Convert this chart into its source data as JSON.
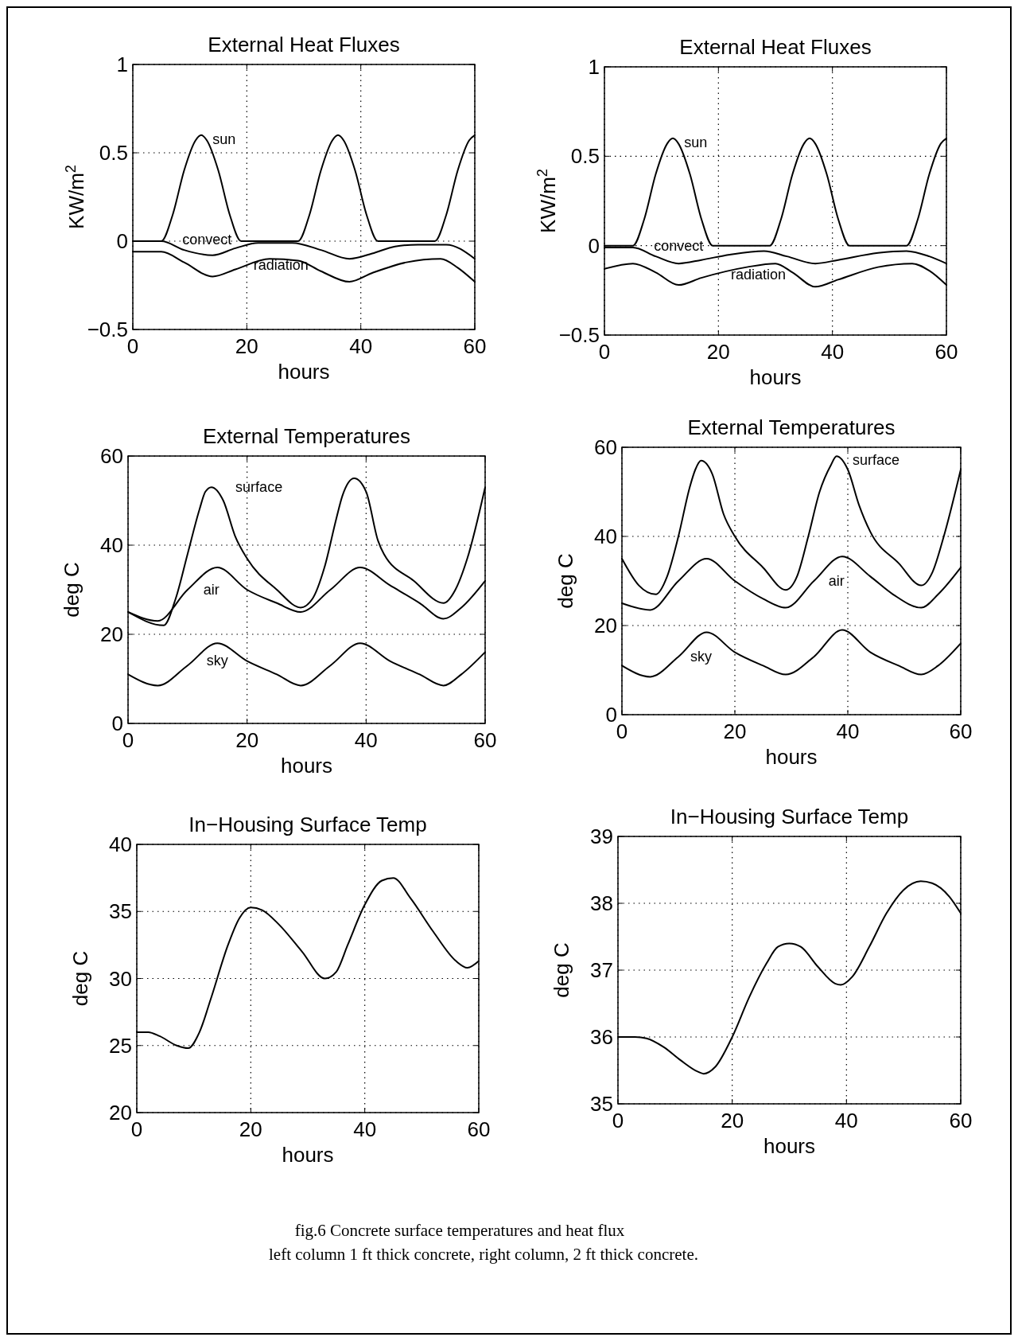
{
  "chart_data": [
    {
      "type": "line",
      "title": "External Heat Fluxes",
      "xlabel": "hours",
      "ylabel": "KW/m$^{2}$",
      "xlim": [
        0,
        60
      ],
      "ylim": [
        -0.5,
        1
      ],
      "xticks": [
        0,
        20,
        40,
        60
      ],
      "yticks": [
        {
          "value": -0.5,
          "label": "−0.5"
        },
        0,
        0.5,
        1
      ],
      "grid": true,
      "color": "#000000",
      "series": [
        {
          "name": "sun",
          "x": [
            0,
            5,
            7,
            9,
            11,
            12,
            13,
            15,
            17,
            19,
            29,
            31,
            33,
            35,
            36,
            37,
            39,
            41,
            43,
            53,
            55,
            57,
            59,
            60
          ],
          "values": [
            0,
            0,
            0.15,
            0.4,
            0.57,
            0.6,
            0.57,
            0.4,
            0.15,
            0,
            0,
            0.15,
            0.4,
            0.57,
            0.6,
            0.57,
            0.4,
            0.15,
            0,
            0,
            0.15,
            0.4,
            0.57,
            0.6
          ]
        },
        {
          "name": "convect",
          "x": [
            0,
            5,
            9,
            14,
            18,
            22,
            28,
            33,
            38,
            42,
            46,
            50,
            55,
            60
          ],
          "values": [
            0,
            0,
            -0.05,
            -0.08,
            -0.04,
            -0.01,
            -0.01,
            -0.05,
            -0.1,
            -0.07,
            -0.03,
            -0.02,
            -0.02,
            -0.1
          ]
        },
        {
          "name": "radiation",
          "x": [
            0,
            5,
            9,
            14,
            18,
            24,
            29,
            33,
            38,
            42,
            48,
            54,
            57,
            60
          ],
          "values": [
            -0.06,
            -0.06,
            -0.12,
            -0.2,
            -0.16,
            -0.1,
            -0.11,
            -0.17,
            -0.23,
            -0.18,
            -0.12,
            -0.1,
            -0.15,
            -0.23
          ]
        }
      ]
    },
    {
      "type": "line",
      "title": "External Heat Fluxes",
      "xlabel": "hours",
      "ylabel": "KW/m$^{2}$",
      "xlim": [
        0,
        60
      ],
      "ylim": [
        -0.5,
        1
      ],
      "xticks": [
        0,
        20,
        40,
        60
      ],
      "yticks": [
        {
          "value": -0.5,
          "label": "−0.5"
        },
        0,
        0.5,
        1
      ],
      "grid": true,
      "color": "#000000",
      "series": [
        {
          "name": "sun",
          "x": [
            0,
            5,
            7,
            9,
            11,
            12,
            13,
            15,
            17,
            19,
            29,
            31,
            33,
            35,
            36,
            37,
            39,
            41,
            43,
            53,
            55,
            57,
            59,
            60
          ],
          "values": [
            0,
            0,
            0.15,
            0.4,
            0.57,
            0.6,
            0.57,
            0.4,
            0.15,
            0,
            0,
            0.15,
            0.4,
            0.57,
            0.6,
            0.57,
            0.4,
            0.15,
            0,
            0,
            0.15,
            0.4,
            0.57,
            0.6
          ]
        },
        {
          "name": "convect",
          "x": [
            0,
            5,
            9,
            13,
            17,
            22,
            28,
            32,
            37,
            41,
            48,
            53,
            57,
            60
          ],
          "values": [
            -0.01,
            -0.01,
            -0.06,
            -0.1,
            -0.08,
            -0.05,
            -0.03,
            -0.06,
            -0.1,
            -0.08,
            -0.04,
            -0.03,
            -0.06,
            -0.1
          ]
        },
        {
          "name": "radiation",
          "x": [
            0,
            5,
            9,
            13,
            17,
            25,
            30,
            33,
            37,
            41,
            48,
            54,
            57,
            60
          ],
          "values": [
            -0.13,
            -0.1,
            -0.15,
            -0.22,
            -0.18,
            -0.12,
            -0.1,
            -0.15,
            -0.23,
            -0.19,
            -0.12,
            -0.1,
            -0.14,
            -0.22
          ]
        }
      ]
    },
    {
      "type": "line",
      "title": "External Temperatures",
      "xlabel": "hours",
      "ylabel": "deg C",
      "xlim": [
        0,
        60
      ],
      "ylim": [
        0,
        60
      ],
      "xticks": [
        0,
        20,
        40,
        60
      ],
      "yticks": [
        0,
        20,
        40,
        60
      ],
      "grid": true,
      "color": "#000000",
      "series": [
        {
          "name": "surface",
          "x": [
            0,
            6,
            8,
            10,
            12,
            13,
            14,
            16,
            18,
            20,
            25,
            29,
            31,
            33,
            35,
            36,
            38,
            40,
            42,
            43,
            48,
            53,
            55,
            57,
            60
          ],
          "values": [
            25,
            22,
            28,
            38,
            48,
            52,
            53,
            50,
            42,
            37,
            30,
            26,
            28,
            35,
            46,
            51,
            55,
            52,
            41,
            38,
            32,
            27,
            30,
            37,
            53
          ]
        },
        {
          "name": "air",
          "x": [
            0,
            5,
            10,
            15,
            20,
            25,
            29,
            34,
            39,
            44,
            49,
            53,
            56,
            60
          ],
          "values": [
            25,
            23,
            30,
            35,
            30,
            27,
            25,
            30,
            35,
            31,
            27,
            23.5,
            26,
            32
          ]
        },
        {
          "name": "sky",
          "x": [
            0,
            5,
            10,
            15,
            20,
            25,
            29,
            34,
            39,
            44,
            49,
            53,
            56,
            60
          ],
          "values": [
            11,
            8.5,
            13,
            18,
            14,
            11,
            8.5,
            13,
            18,
            14,
            11,
            8.5,
            11,
            16
          ]
        }
      ]
    },
    {
      "type": "line",
      "title": "External Temperatures",
      "xlabel": "hours",
      "ylabel": "deg C",
      "xlim": [
        0,
        60
      ],
      "ylim": [
        0,
        60
      ],
      "xticks": [
        0,
        20,
        40,
        60
      ],
      "yticks": [
        0,
        20,
        40,
        60
      ],
      "grid": true,
      "color": "#000000",
      "series": [
        {
          "name": "surface",
          "x": [
            0,
            3,
            6,
            8,
            10,
            12,
            13,
            14,
            16,
            18,
            20,
            25,
            29,
            31,
            33,
            35,
            37,
            38,
            40,
            42,
            44,
            49,
            53,
            55,
            57,
            60
          ],
          "values": [
            35,
            29,
            27,
            31,
            40,
            51,
            55,
            57,
            54,
            45,
            40,
            33,
            28,
            31,
            40,
            50,
            56,
            58,
            55,
            47,
            41,
            34,
            29,
            32,
            40,
            55
          ]
        },
        {
          "name": "air",
          "x": [
            0,
            5,
            10,
            15,
            20,
            25,
            29,
            34,
            39,
            44,
            48,
            53,
            56,
            60
          ],
          "values": [
            25,
            23.5,
            30,
            35,
            30,
            26,
            24,
            30,
            35.5,
            31,
            27,
            24,
            27,
            33
          ]
        },
        {
          "name": "sky",
          "x": [
            0,
            5,
            10,
            15,
            20,
            25,
            29,
            34,
            39,
            44,
            49,
            53,
            56,
            60
          ],
          "values": [
            11,
            8.5,
            13,
            18.5,
            14,
            11,
            9,
            13,
            19,
            14,
            11,
            9,
            11,
            16
          ]
        }
      ]
    },
    {
      "type": "line",
      "title": "In−Housing Surface Temp",
      "xlabel": "hours",
      "ylabel": "deg C",
      "xlim": [
        0,
        60
      ],
      "ylim": [
        20,
        40
      ],
      "xticks": [
        0,
        20,
        40,
        60
      ],
      "yticks": [
        20,
        25,
        30,
        35,
        40
      ],
      "grid": true,
      "color": "#000000",
      "series": [
        {
          "x": [
            0,
            2,
            4,
            7,
            9,
            11,
            13,
            16,
            18,
            20,
            22,
            25,
            29,
            33,
            35,
            37,
            40,
            43,
            45,
            48,
            52,
            56,
            58,
            60
          ],
          "values": [
            26,
            26,
            25.7,
            25,
            24.8,
            26,
            28.5,
            32.5,
            34.5,
            35.3,
            35.1,
            34,
            32,
            30,
            30.5,
            32.5,
            35.5,
            37.3,
            37.5,
            36,
            33.5,
            31.3,
            30.8,
            31.3
          ]
        }
      ]
    },
    {
      "type": "line",
      "title": "In−Housing Surface Temp",
      "xlabel": "hours",
      "ylabel": "deg C",
      "xlim": [
        0,
        60
      ],
      "ylim": [
        35,
        39
      ],
      "xticks": [
        0,
        20,
        40,
        60
      ],
      "yticks": [
        35,
        36,
        37,
        38,
        39
      ],
      "grid": true,
      "color": "#000000",
      "series": [
        {
          "x": [
            0,
            3,
            5,
            8,
            11,
            14,
            15,
            17,
            20,
            23,
            26,
            28,
            30,
            32,
            35,
            38,
            39,
            41,
            44,
            47,
            50,
            53,
            55,
            58,
            60
          ],
          "values": [
            36,
            36,
            35.98,
            35.85,
            35.65,
            35.48,
            35.45,
            35.55,
            36,
            36.6,
            37.1,
            37.35,
            37.4,
            37.35,
            37.05,
            36.8,
            36.78,
            36.9,
            37.35,
            37.85,
            38.2,
            38.33,
            38.3,
            38.1,
            37.85
          ]
        }
      ],
      "annotations": [
        "fig.6 Concrete surface temperatures and heat flux",
        "left column 1 ft thick concrete, right column, 2 ft thick concrete."
      ]
    }
  ]
}
